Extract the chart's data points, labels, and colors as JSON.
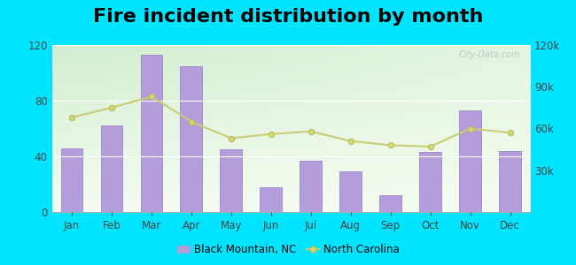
{
  "title": "Fire incident distribution by month",
  "months": [
    "Jan",
    "Feb",
    "Mar",
    "Apr",
    "May",
    "Jun",
    "Jul",
    "Aug",
    "Sep",
    "Oct",
    "Nov",
    "Dec"
  ],
  "bar_values": [
    46,
    62,
    113,
    105,
    45,
    18,
    37,
    29,
    12,
    43,
    73,
    44
  ],
  "line_values": [
    68000,
    75000,
    83000,
    65000,
    53000,
    56000,
    58000,
    51000,
    48000,
    47000,
    60000,
    57000
  ],
  "bar_color": "#b39ddb",
  "bar_edge_color": "#9575cd",
  "line_color": "#c8cc72",
  "line_marker": "o",
  "line_marker_facecolor": "#d4d96e",
  "line_marker_edgecolor": "#b8bc60",
  "ylim_left": [
    0,
    120
  ],
  "ylim_right": [
    0,
    120000
  ],
  "yticks_left": [
    0,
    40,
    80,
    120
  ],
  "yticks_right": [
    30000,
    60000,
    90000,
    120000
  ],
  "ytick_right_labels": [
    "30k",
    "60k",
    "90k",
    "120k"
  ],
  "outer_bg": "#00e5ff",
  "title_fontsize": 16,
  "watermark": "City-Data.com",
  "legend_labels": [
    "Black Mountain, NC",
    "North Carolina"
  ]
}
